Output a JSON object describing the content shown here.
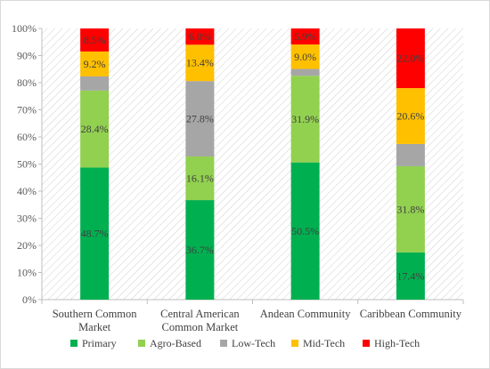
{
  "chart_data": {
    "type": "bar",
    "stacked": true,
    "percent": true,
    "title": "",
    "xlabel": "",
    "ylabel": "",
    "ylim": [
      0,
      100
    ],
    "y_ticks": [
      "0%",
      "10%",
      "20%",
      "30%",
      "40%",
      "50%",
      "60%",
      "70%",
      "80%",
      "90%",
      "100%"
    ],
    "grid": false,
    "plot_background": "diagonal hatch",
    "legend_position": "bottom",
    "categories": [
      [
        "Southern Common",
        "Market"
      ],
      [
        "Central American",
        "Common Market"
      ],
      [
        "Andean Community"
      ],
      [
        "Caribbean Community"
      ]
    ],
    "series": [
      {
        "name": "Primary",
        "color": "#00b050",
        "values": [
          48.7,
          36.7,
          50.5,
          17.4
        ],
        "labels": [
          "48.7%",
          "36.7%",
          "50.5%",
          "17.4%"
        ]
      },
      {
        "name": "Agro-Based",
        "color": "#92d050",
        "values": [
          28.4,
          16.1,
          31.9,
          31.8
        ],
        "labels": [
          "28.4%",
          "16.1%",
          "31.9%",
          "31.8%"
        ]
      },
      {
        "name": "Low-Tech",
        "color": "#a6a6a6",
        "values": [
          5.2,
          27.8,
          2.5,
          8.2
        ],
        "labels": [
          "",
          "27.8%",
          "",
          ""
        ]
      },
      {
        "name": "Mid-Tech",
        "color": "#ffc000",
        "values": [
          9.2,
          13.4,
          9.0,
          20.6
        ],
        "labels": [
          "9.2%",
          "13.4%",
          "9.0%",
          "20.6%"
        ]
      },
      {
        "name": "High-Tech",
        "color": "#ff0000",
        "values": [
          8.5,
          6.0,
          5.9,
          22.0
        ],
        "labels": [
          "8.5%",
          "6.0%",
          "5.9%",
          "22.0%"
        ]
      }
    ]
  }
}
